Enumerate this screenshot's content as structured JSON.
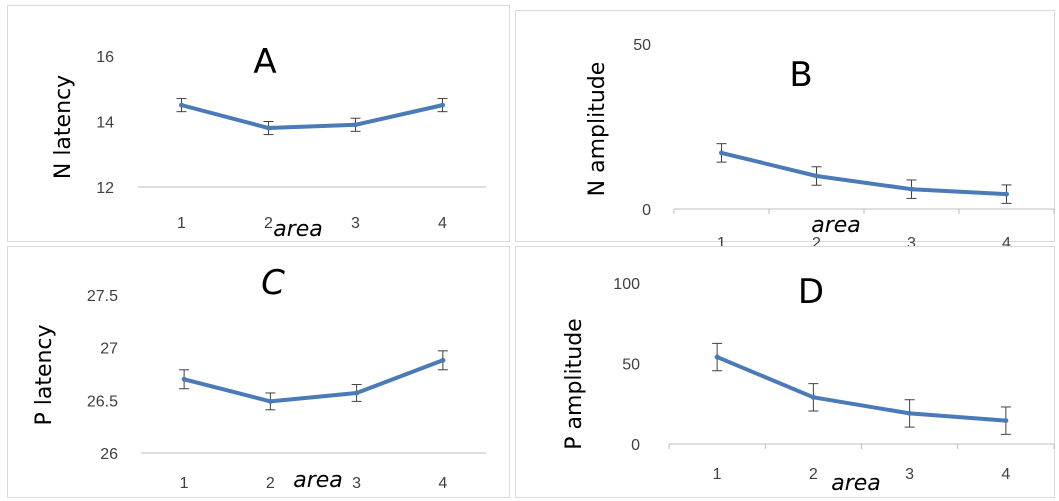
{
  "style": {
    "series_color": "#4a7ab7",
    "axis_color": "#bfbfbf",
    "errorbar_color": "#404040"
  },
  "chart_data": [
    {
      "type": "line",
      "title": "A",
      "ylabel": "N latency",
      "xlabel": "area",
      "x": [
        "1",
        "2",
        "3",
        "4"
      ],
      "values": [
        14.5,
        13.8,
        13.9,
        14.5
      ],
      "error": [
        0.2,
        0.2,
        0.2,
        0.2
      ],
      "ylim": [
        12,
        16
      ],
      "yticks": [
        "12",
        "14",
        "16"
      ],
      "grid": false
    },
    {
      "type": "line",
      "title": "B",
      "ylabel": "N amplitude",
      "xlabel": "area",
      "x": [
        "1",
        "2",
        "3",
        "4"
      ],
      "values": [
        17,
        10,
        6,
        4.5
      ],
      "error": [
        2.8,
        2.8,
        2.8,
        2.8
      ],
      "ylim": [
        0,
        50
      ],
      "yticks": [
        "0",
        "50"
      ],
      "grid": false
    },
    {
      "type": "line",
      "title": "C",
      "ylabel": "P latency",
      "xlabel": "area",
      "x": [
        "1",
        "2",
        "3",
        "4"
      ],
      "values": [
        26.7,
        26.49,
        26.57,
        26.88
      ],
      "error": [
        0.09,
        0.08,
        0.08,
        0.09
      ],
      "ylim": [
        26,
        27.5
      ],
      "yticks": [
        "26",
        "26.5",
        "27",
        "27.5"
      ],
      "grid": false
    },
    {
      "type": "line",
      "title": "D",
      "ylabel": "P amplitude",
      "xlabel": "area",
      "x": [
        "1",
        "2",
        "3",
        "4"
      ],
      "values": [
        54,
        29,
        19,
        14.5
      ],
      "error": [
        8.5,
        8.5,
        8.5,
        8.5
      ],
      "ylim": [
        0,
        100
      ],
      "yticks": [
        "0",
        "50",
        "100"
      ],
      "grid": false
    }
  ]
}
